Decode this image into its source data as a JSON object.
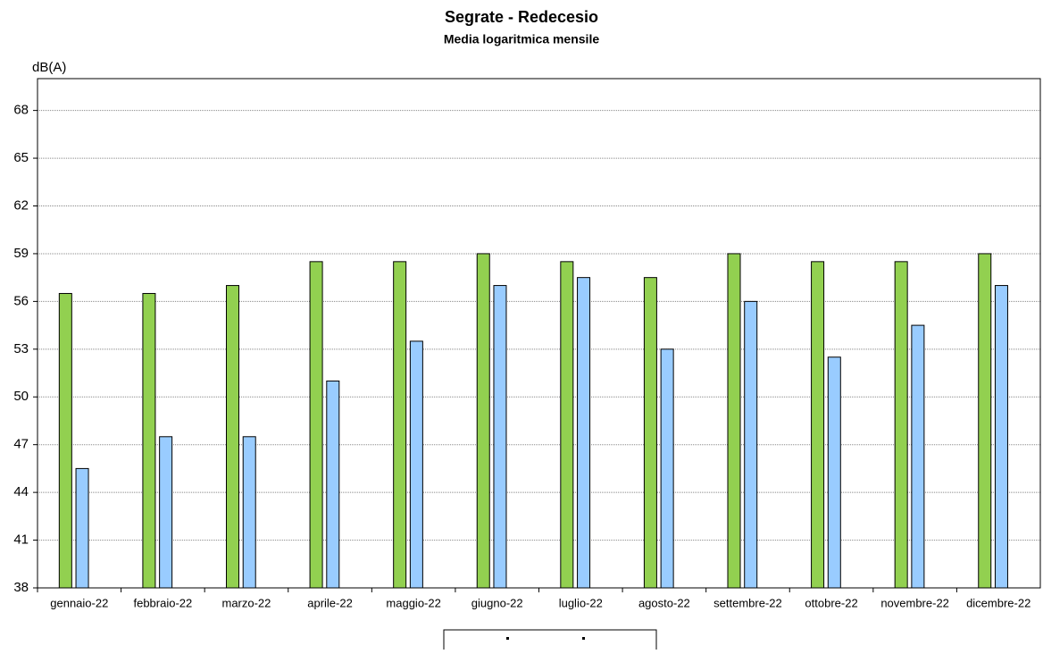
{
  "chart_data": {
    "type": "bar",
    "title": "Segrate - Redecesio",
    "subtitle": "Media logaritmica mensile",
    "y_label": "dB(A)",
    "categories": [
      "gennaio-22",
      "febbraio-22",
      "marzo-22",
      "aprile-22",
      "maggio-22",
      "giugno-22",
      "luglio-22",
      "agosto-22",
      "settembre-22",
      "ottobre-22",
      "novembre-22",
      "dicembre-22"
    ],
    "series": [
      {
        "color": "#92d050",
        "values": [
          56.5,
          56.5,
          57,
          58.5,
          58.5,
          59,
          58.5,
          57.5,
          59,
          58.5,
          58.5,
          59
        ]
      },
      {
        "color": "#99ccff",
        "values": [
          45.5,
          47.5,
          47.5,
          51,
          53.5,
          57,
          57.5,
          53,
          56,
          52.5,
          54.5,
          57
        ]
      }
    ],
    "ylim": [
      38,
      70
    ],
    "yticks": [
      38,
      41,
      44,
      47,
      50,
      53,
      56,
      59,
      62,
      65,
      68
    ],
    "grid": true
  }
}
